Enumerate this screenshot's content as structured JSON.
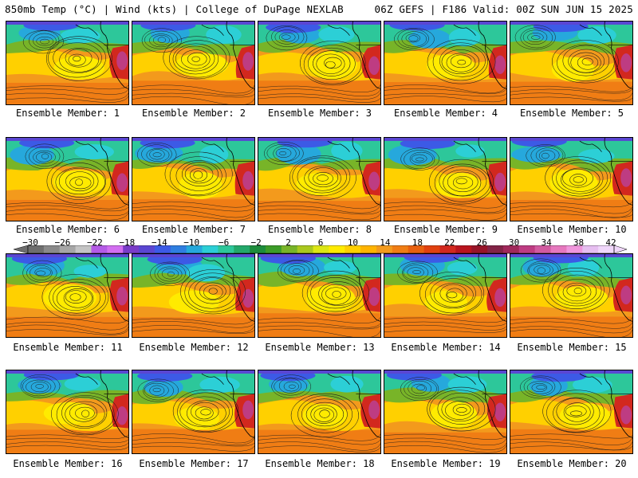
{
  "header": {
    "left": "850mb Temp (°C) | Wind (kts) | College of DuPage NEXLAB",
    "right": "06Z GEFS | F186 Valid: 00Z SUN JUN 15 2025"
  },
  "panels": [
    {
      "label": "Ensemble Member: 1"
    },
    {
      "label": "Ensemble Member: 2"
    },
    {
      "label": "Ensemble Member: 3"
    },
    {
      "label": "Ensemble Member: 4"
    },
    {
      "label": "Ensemble Member: 5"
    },
    {
      "label": "Ensemble Member: 6"
    },
    {
      "label": "Ensemble Member: 7"
    },
    {
      "label": "Ensemble Member: 8"
    },
    {
      "label": "Ensemble Member: 9"
    },
    {
      "label": "Ensemble Member: 10"
    },
    {
      "label": "Ensemble Member: 11"
    },
    {
      "label": "Ensemble Member: 12"
    },
    {
      "label": "Ensemble Member: 13"
    },
    {
      "label": "Ensemble Member: 14"
    },
    {
      "label": "Ensemble Member: 15"
    },
    {
      "label": "Ensemble Member: 16"
    },
    {
      "label": "Ensemble Member: 17"
    },
    {
      "label": "Ensemble Member: 18"
    },
    {
      "label": "Ensemble Member: 19"
    },
    {
      "label": "Ensemble Member: 20"
    }
  ],
  "colorbar": {
    "tick_labels": [
      "−30",
      "−26",
      "−22",
      "−18",
      "−14",
      "−10",
      "−6",
      "−2",
      "2",
      "6",
      "10",
      "14",
      "18",
      "22",
      "26",
      "30",
      "34",
      "38",
      "42"
    ],
    "colors": [
      "#6e6e6e",
      "#8a8a8a",
      "#a6a6a6",
      "#c4c4c4",
      "#b45ae6",
      "#d26ef0",
      "#7a3cc8",
      "#5a46d2",
      "#3c5ae6",
      "#2f7ee0",
      "#26a8dc",
      "#2ccfd6",
      "#2dc79a",
      "#23a86a",
      "#1d8c3c",
      "#3c9c28",
      "#78b428",
      "#aac81e",
      "#dce614",
      "#ffeb00",
      "#ffd000",
      "#ffb400",
      "#f39a1c",
      "#f07d14",
      "#e8600f",
      "#e1410f",
      "#d2281e",
      "#b9141e",
      "#961428",
      "#822346",
      "#a0285a",
      "#be3c82",
      "#d25aa0",
      "#e678be",
      "#f096dc",
      "#e6bef0",
      "#f0d7fa"
    ]
  }
}
